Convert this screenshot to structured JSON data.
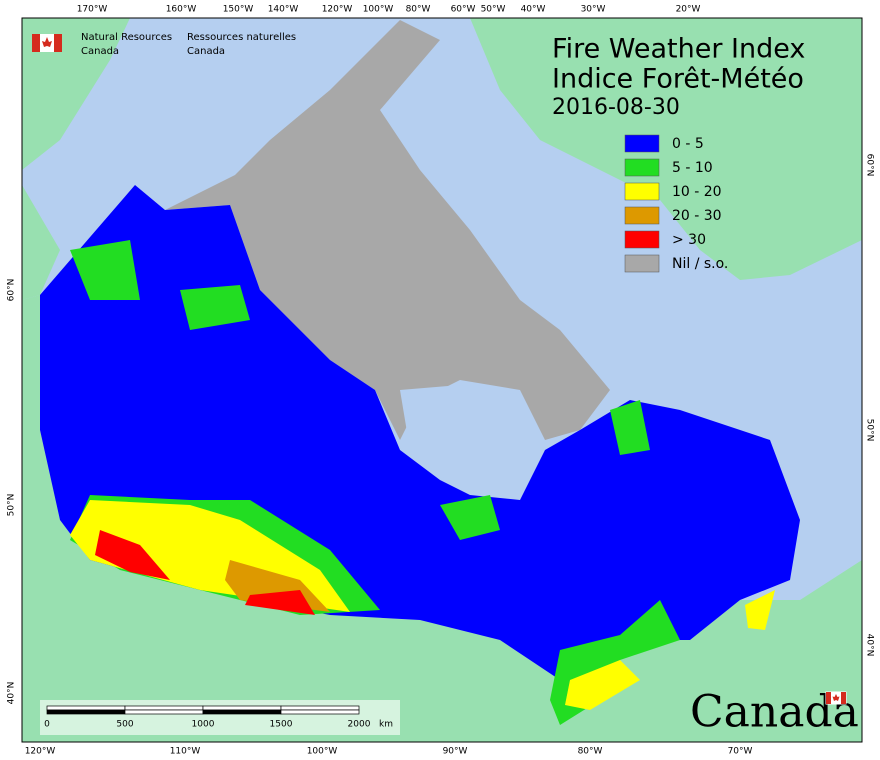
{
  "header": {
    "title_en": "Fire Weather Index",
    "title_fr": "Indice Forêt-Météo",
    "date": "2016-08-30"
  },
  "agency": {
    "en_line1": "Natural Resources",
    "en_line2": "Canada",
    "fr_line1": "Ressources naturelles",
    "fr_line2": "Canada"
  },
  "legend": [
    {
      "label": "0 - 5",
      "color": "#0000ff"
    },
    {
      "label": "5 - 10",
      "color": "#22dd22"
    },
    {
      "label": "10 - 20",
      "color": "#ffff00"
    },
    {
      "label": "20 - 30",
      "color": "#dd9900"
    },
    {
      "label": "> 30",
      "color": "#ff0000"
    },
    {
      "label": "Nil / s.o.",
      "color": "#a8a8a8"
    }
  ],
  "graticule": {
    "top": [
      "170°W",
      "160°W",
      "150°W",
      "140°W",
      "120°W",
      "100°W",
      "80°W",
      "60°W",
      "50°W",
      "40°W",
      "30°W",
      "20°W"
    ],
    "bottom": [
      "120°W",
      "110°W",
      "100°W",
      "90°W",
      "80°W",
      "70°W"
    ],
    "left": [
      "60°N",
      "50°N",
      "40°N"
    ],
    "right": [
      "60°N",
      "50°N",
      "40°N"
    ]
  },
  "scale_bar": {
    "ticks": [
      "0",
      "500",
      "1000",
      "1500",
      "2000"
    ],
    "unit": "km"
  },
  "wordmark": "Canada"
}
